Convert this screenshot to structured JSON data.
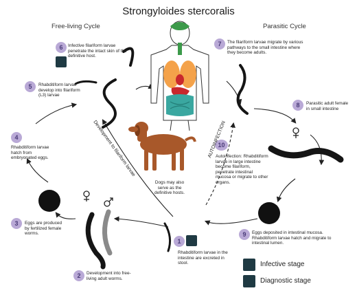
{
  "title": "Strongyloides stercoralis",
  "free_living_label": "Free-living Cycle",
  "parasitic_label": "Parasitic Cycle",
  "steps": [
    {
      "num": "1",
      "text": "Rhabditiform larvae in the intestine are excreted in stool."
    },
    {
      "num": "2",
      "text": "Development into free-living adult worms."
    },
    {
      "num": "3",
      "text": "Eggs are produced by fertilized female worms."
    },
    {
      "num": "4",
      "text": "Rhabditiform larvae hatch from embryonated eggs."
    },
    {
      "num": "5",
      "text": "Rhabditiform larvae develop into filariform (L3) larvae"
    },
    {
      "num": "6",
      "text": "Infective filariform larvae penetrate the intact skin of the definitive host."
    },
    {
      "num": "7",
      "text": "The filariform larvae migrate by various pathways to the small intestine where they become adults."
    },
    {
      "num": "8",
      "text": "Parasitic adult female in small intestine"
    },
    {
      "num": "9",
      "text": "Eggs deposited in intestinal mucosa. Rhabditiform larvae hatch and migrate to intestinal lumen."
    },
    {
      "num": "10",
      "text": "Autoinfection: Rhabditiform larvae in large intestine become filariform, penetrate intestinal mucosa or migrate to other organs."
    }
  ],
  "dogs_note": "Dogs may also serve as the definitive hosts.",
  "development_label": "Development to filariform larvae",
  "autoinfection_label": "AUTOINFECTION",
  "legend": {
    "infective": "Infective stage",
    "diagnostic": "Diagnostic stage"
  },
  "colors": {
    "number_circle": "#b9a9d6",
    "icon_badge": "#1f3a43",
    "worm": "#151515",
    "dog": "#a8582a",
    "lungs": "#f4a24a",
    "stomach": "#c9282d",
    "intestine": "#3aa7a0",
    "brain": "#3c9a4a"
  },
  "icons": {
    "infective": "biohazard-icon",
    "diagnostic": "microscope-icon"
  }
}
